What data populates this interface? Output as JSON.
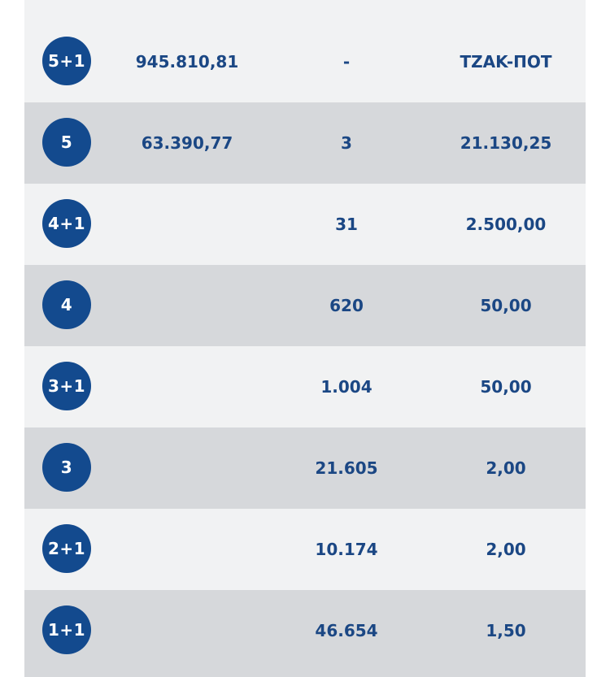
{
  "colors": {
    "badge": "#134a8e",
    "text": "#1b4784",
    "row_light": "#f1f2f3",
    "row_dark": "#d6d8db"
  },
  "rows": [
    {
      "category": "5+1",
      "pool": "945.810,81",
      "winners": "-",
      "prize": "TZAK-ΠΟΤ"
    },
    {
      "category": "5",
      "pool": "63.390,77",
      "winners": "3",
      "prize": "21.130,25"
    },
    {
      "category": "4+1",
      "pool": "",
      "winners": "31",
      "prize": "2.500,00"
    },
    {
      "category": "4",
      "pool": "",
      "winners": "620",
      "prize": "50,00"
    },
    {
      "category": "3+1",
      "pool": "",
      "winners": "1.004",
      "prize": "50,00"
    },
    {
      "category": "3",
      "pool": "",
      "winners": "21.605",
      "prize": "2,00"
    },
    {
      "category": "2+1",
      "pool": "",
      "winners": "10.174",
      "prize": "2,00"
    },
    {
      "category": "1+1",
      "pool": "",
      "winners": "46.654",
      "prize": "1,50"
    }
  ]
}
